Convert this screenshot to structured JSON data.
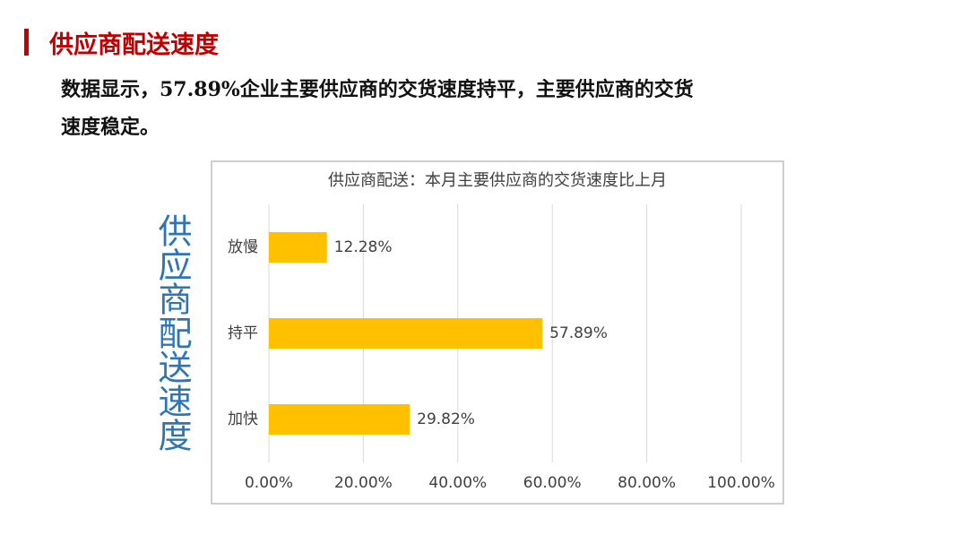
{
  "header": {
    "title": "供应商配送速度",
    "description": [
      "数据显示，57.89%企业主要供应商的交货速度持平，主要供应商的交货",
      "速度稳定。"
    ]
  },
  "side_label": "供应商配送速度",
  "chart_data": {
    "type": "bar",
    "orientation": "horizontal",
    "title": "供应商配送：本月主要供应商的交货速度比上月",
    "categories": [
      "放慢",
      "持平",
      "加快"
    ],
    "values": [
      12.28,
      57.89,
      29.82
    ],
    "value_labels": [
      "12.28%",
      "57.89%",
      "29.82%"
    ],
    "color": "#ffc000",
    "xlim": [
      0,
      100
    ],
    "xticks": [
      {
        "value": 0,
        "label": "0.00%"
      },
      {
        "value": 20,
        "label": "20.00%"
      },
      {
        "value": 40,
        "label": "40.00%"
      },
      {
        "value": 60,
        "label": "60.00%"
      },
      {
        "value": 80,
        "label": "80.00%"
      },
      {
        "value": 100,
        "label": "100.00%"
      }
    ],
    "grid": true
  }
}
